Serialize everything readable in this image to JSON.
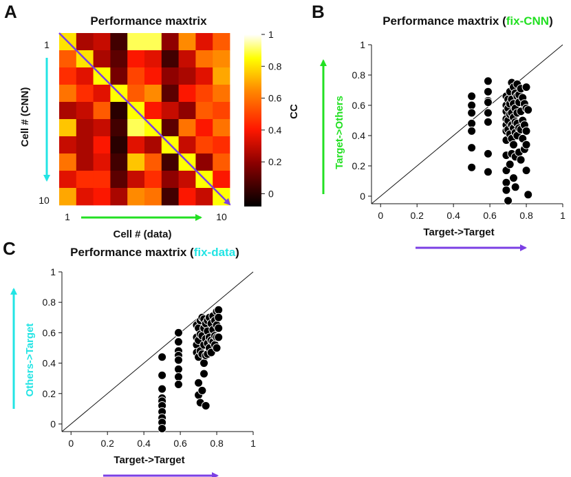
{
  "chart_data": [
    {
      "type": "heatmap",
      "panel": "A",
      "title": "Performance maxtrix",
      "xlabel": "Cell # (data)",
      "ylabel": "Cell # (CNN)",
      "x_ticks": [
        "1",
        "10"
      ],
      "y_ticks": [
        "1",
        "10"
      ],
      "colorbar_label": "CC",
      "colorbar_ticks": [
        "0",
        "0.2",
        "0.4",
        "0.6",
        "0.8",
        "1"
      ],
      "colorbar_range": [
        -0.08,
        1.0
      ],
      "matrix": [
        [
          0.8,
          0.25,
          0.3,
          0.05,
          0.9,
          0.9,
          0.2,
          0.65,
          0.35,
          0.55
        ],
        [
          0.55,
          0.8,
          0.25,
          0.1,
          0.4,
          0.35,
          0.05,
          0.3,
          0.6,
          0.65
        ],
        [
          0.45,
          0.35,
          0.85,
          0.15,
          0.5,
          0.4,
          0.2,
          0.25,
          0.35,
          0.7
        ],
        [
          0.6,
          0.45,
          0.35,
          0.85,
          0.55,
          0.65,
          0.1,
          0.4,
          0.5,
          0.6
        ],
        [
          0.25,
          0.3,
          0.55,
          0.0,
          0.85,
          0.4,
          0.3,
          0.2,
          0.55,
          0.5
        ],
        [
          0.75,
          0.25,
          0.3,
          0.05,
          0.9,
          0.85,
          0.1,
          0.6,
          0.4,
          0.6
        ],
        [
          0.3,
          0.25,
          0.4,
          0.0,
          0.35,
          0.25,
          0.85,
          0.3,
          0.5,
          0.45
        ],
        [
          0.6,
          0.25,
          0.35,
          0.05,
          0.75,
          0.55,
          0.05,
          0.85,
          0.2,
          0.55
        ],
        [
          0.35,
          0.45,
          0.45,
          0.1,
          0.3,
          0.45,
          0.2,
          0.3,
          0.85,
          0.4
        ],
        [
          0.7,
          0.35,
          0.4,
          0.25,
          0.65,
          0.6,
          0.05,
          0.4,
          0.3,
          0.85
        ]
      ],
      "colors": {
        "diagonal": "#7b3fe4",
        "row_arrow": "#22e4e4",
        "col_arrow": "#22e022"
      }
    },
    {
      "type": "scatter",
      "panel": "B",
      "title": "Performance maxtrix (",
      "title_highlight": "fix-CNN",
      "title_suffix": ")",
      "title_highlight_color": "#22e022",
      "xlabel": "Target->Target",
      "ylabel": "Target->Others",
      "ylabel_color": "#22e022",
      "arrow_color": "#7b3fe4",
      "xlim": [
        -0.05,
        1.0
      ],
      "ylim": [
        -0.05,
        1.0
      ],
      "x_ticks": [
        "0",
        "0.2",
        "0.4",
        "0.6",
        "0.8",
        "1"
      ],
      "y_ticks": [
        "0",
        "0.2",
        "0.4",
        "0.6",
        "0.8",
        "1"
      ],
      "diagonal": true,
      "x": [
        0.5,
        0.5,
        0.5,
        0.5,
        0.5,
        0.5,
        0.5,
        0.59,
        0.59,
        0.59,
        0.59,
        0.59,
        0.59,
        0.59,
        0.59,
        0.69,
        0.69,
        0.69,
        0.69,
        0.69,
        0.69,
        0.69,
        0.69,
        0.69,
        0.69,
        0.69,
        0.7,
        0.7,
        0.7,
        0.7,
        0.7,
        0.71,
        0.71,
        0.71,
        0.71,
        0.71,
        0.72,
        0.72,
        0.72,
        0.72,
        0.72,
        0.72,
        0.73,
        0.73,
        0.73,
        0.73,
        0.73,
        0.73,
        0.74,
        0.74,
        0.74,
        0.74,
        0.74,
        0.74,
        0.75,
        0.75,
        0.75,
        0.75,
        0.75,
        0.76,
        0.76,
        0.76,
        0.76,
        0.77,
        0.77,
        0.77,
        0.77,
        0.78,
        0.78,
        0.78,
        0.79,
        0.79,
        0.79,
        0.8,
        0.8,
        0.8,
        0.8,
        0.8,
        0.81,
        0.81
      ],
      "y": [
        0.66,
        0.6,
        0.55,
        0.48,
        0.43,
        0.32,
        0.19,
        0.76,
        0.69,
        0.63,
        0.62,
        0.55,
        0.49,
        0.28,
        0.16,
        0.66,
        0.6,
        0.56,
        0.51,
        0.47,
        0.43,
        0.37,
        0.27,
        0.17,
        0.09,
        0.04,
        0.64,
        0.58,
        0.5,
        0.44,
        -0.03,
        0.69,
        0.61,
        0.54,
        0.41,
        0.21,
        0.75,
        0.64,
        0.55,
        0.47,
        0.38,
        0.28,
        0.72,
        0.61,
        0.52,
        0.45,
        0.34,
        0.12,
        0.68,
        0.58,
        0.49,
        0.42,
        0.26,
        0.06,
        0.74,
        0.66,
        0.55,
        0.48,
        0.4,
        0.67,
        0.62,
        0.45,
        0.29,
        0.71,
        0.56,
        0.44,
        0.24,
        0.65,
        0.5,
        0.38,
        0.61,
        0.47,
        0.31,
        0.72,
        0.58,
        0.43,
        0.34,
        0.17,
        0.57,
        0.01
      ]
    },
    {
      "type": "scatter",
      "panel": "C",
      "title": "Performance maxtrix (",
      "title_highlight": "fix-data",
      "title_suffix": ")",
      "title_highlight_color": "#22e4e4",
      "xlabel": "Target->Target",
      "ylabel": "Others->Target",
      "ylabel_color": "#22e4e4",
      "arrow_color": "#7b3fe4",
      "xlim": [
        -0.05,
        1.0
      ],
      "ylim": [
        -0.05,
        1.0
      ],
      "x_ticks": [
        "0",
        "0.2",
        "0.4",
        "0.6",
        "0.8",
        "1"
      ],
      "y_ticks": [
        "0",
        "0.2",
        "0.4",
        "0.6",
        "0.8",
        "1"
      ],
      "diagonal": true,
      "x": [
        0.5,
        0.5,
        0.5,
        0.5,
        0.5,
        0.5,
        0.5,
        0.5,
        0.5,
        0.5,
        0.59,
        0.59,
        0.59,
        0.59,
        0.59,
        0.59,
        0.59,
        0.59,
        0.69,
        0.69,
        0.69,
        0.69,
        0.7,
        0.7,
        0.7,
        0.7,
        0.7,
        0.71,
        0.71,
        0.71,
        0.71,
        0.72,
        0.72,
        0.72,
        0.72,
        0.73,
        0.73,
        0.73,
        0.73,
        0.73,
        0.74,
        0.74,
        0.74,
        0.74,
        0.75,
        0.75,
        0.75,
        0.75,
        0.76,
        0.76,
        0.76,
        0.77,
        0.77,
        0.77,
        0.78,
        0.78,
        0.78,
        0.79,
        0.79,
        0.79,
        0.8,
        0.8,
        0.8,
        0.8,
        0.81,
        0.81,
        0.81,
        0.81
      ],
      "y": [
        0.44,
        0.32,
        0.23,
        0.17,
        0.15,
        0.12,
        0.08,
        0.04,
        0.01,
        -0.03,
        0.6,
        0.54,
        0.48,
        0.45,
        0.42,
        0.36,
        0.31,
        0.26,
        0.65,
        0.57,
        0.52,
        0.47,
        0.63,
        0.55,
        0.44,
        0.27,
        0.19,
        0.68,
        0.59,
        0.48,
        0.14,
        0.7,
        0.58,
        0.46,
        0.22,
        0.69,
        0.63,
        0.52,
        0.4,
        0.33,
        0.66,
        0.56,
        0.45,
        0.12,
        0.68,
        0.61,
        0.53,
        0.46,
        0.7,
        0.57,
        0.5,
        0.66,
        0.55,
        0.47,
        0.71,
        0.62,
        0.54,
        0.68,
        0.58,
        0.52,
        0.74,
        0.65,
        0.57,
        0.5,
        0.75,
        0.7,
        0.63,
        0.57
      ]
    }
  ],
  "panel_letters": {
    "a": "A",
    "b": "B",
    "c": "C"
  }
}
